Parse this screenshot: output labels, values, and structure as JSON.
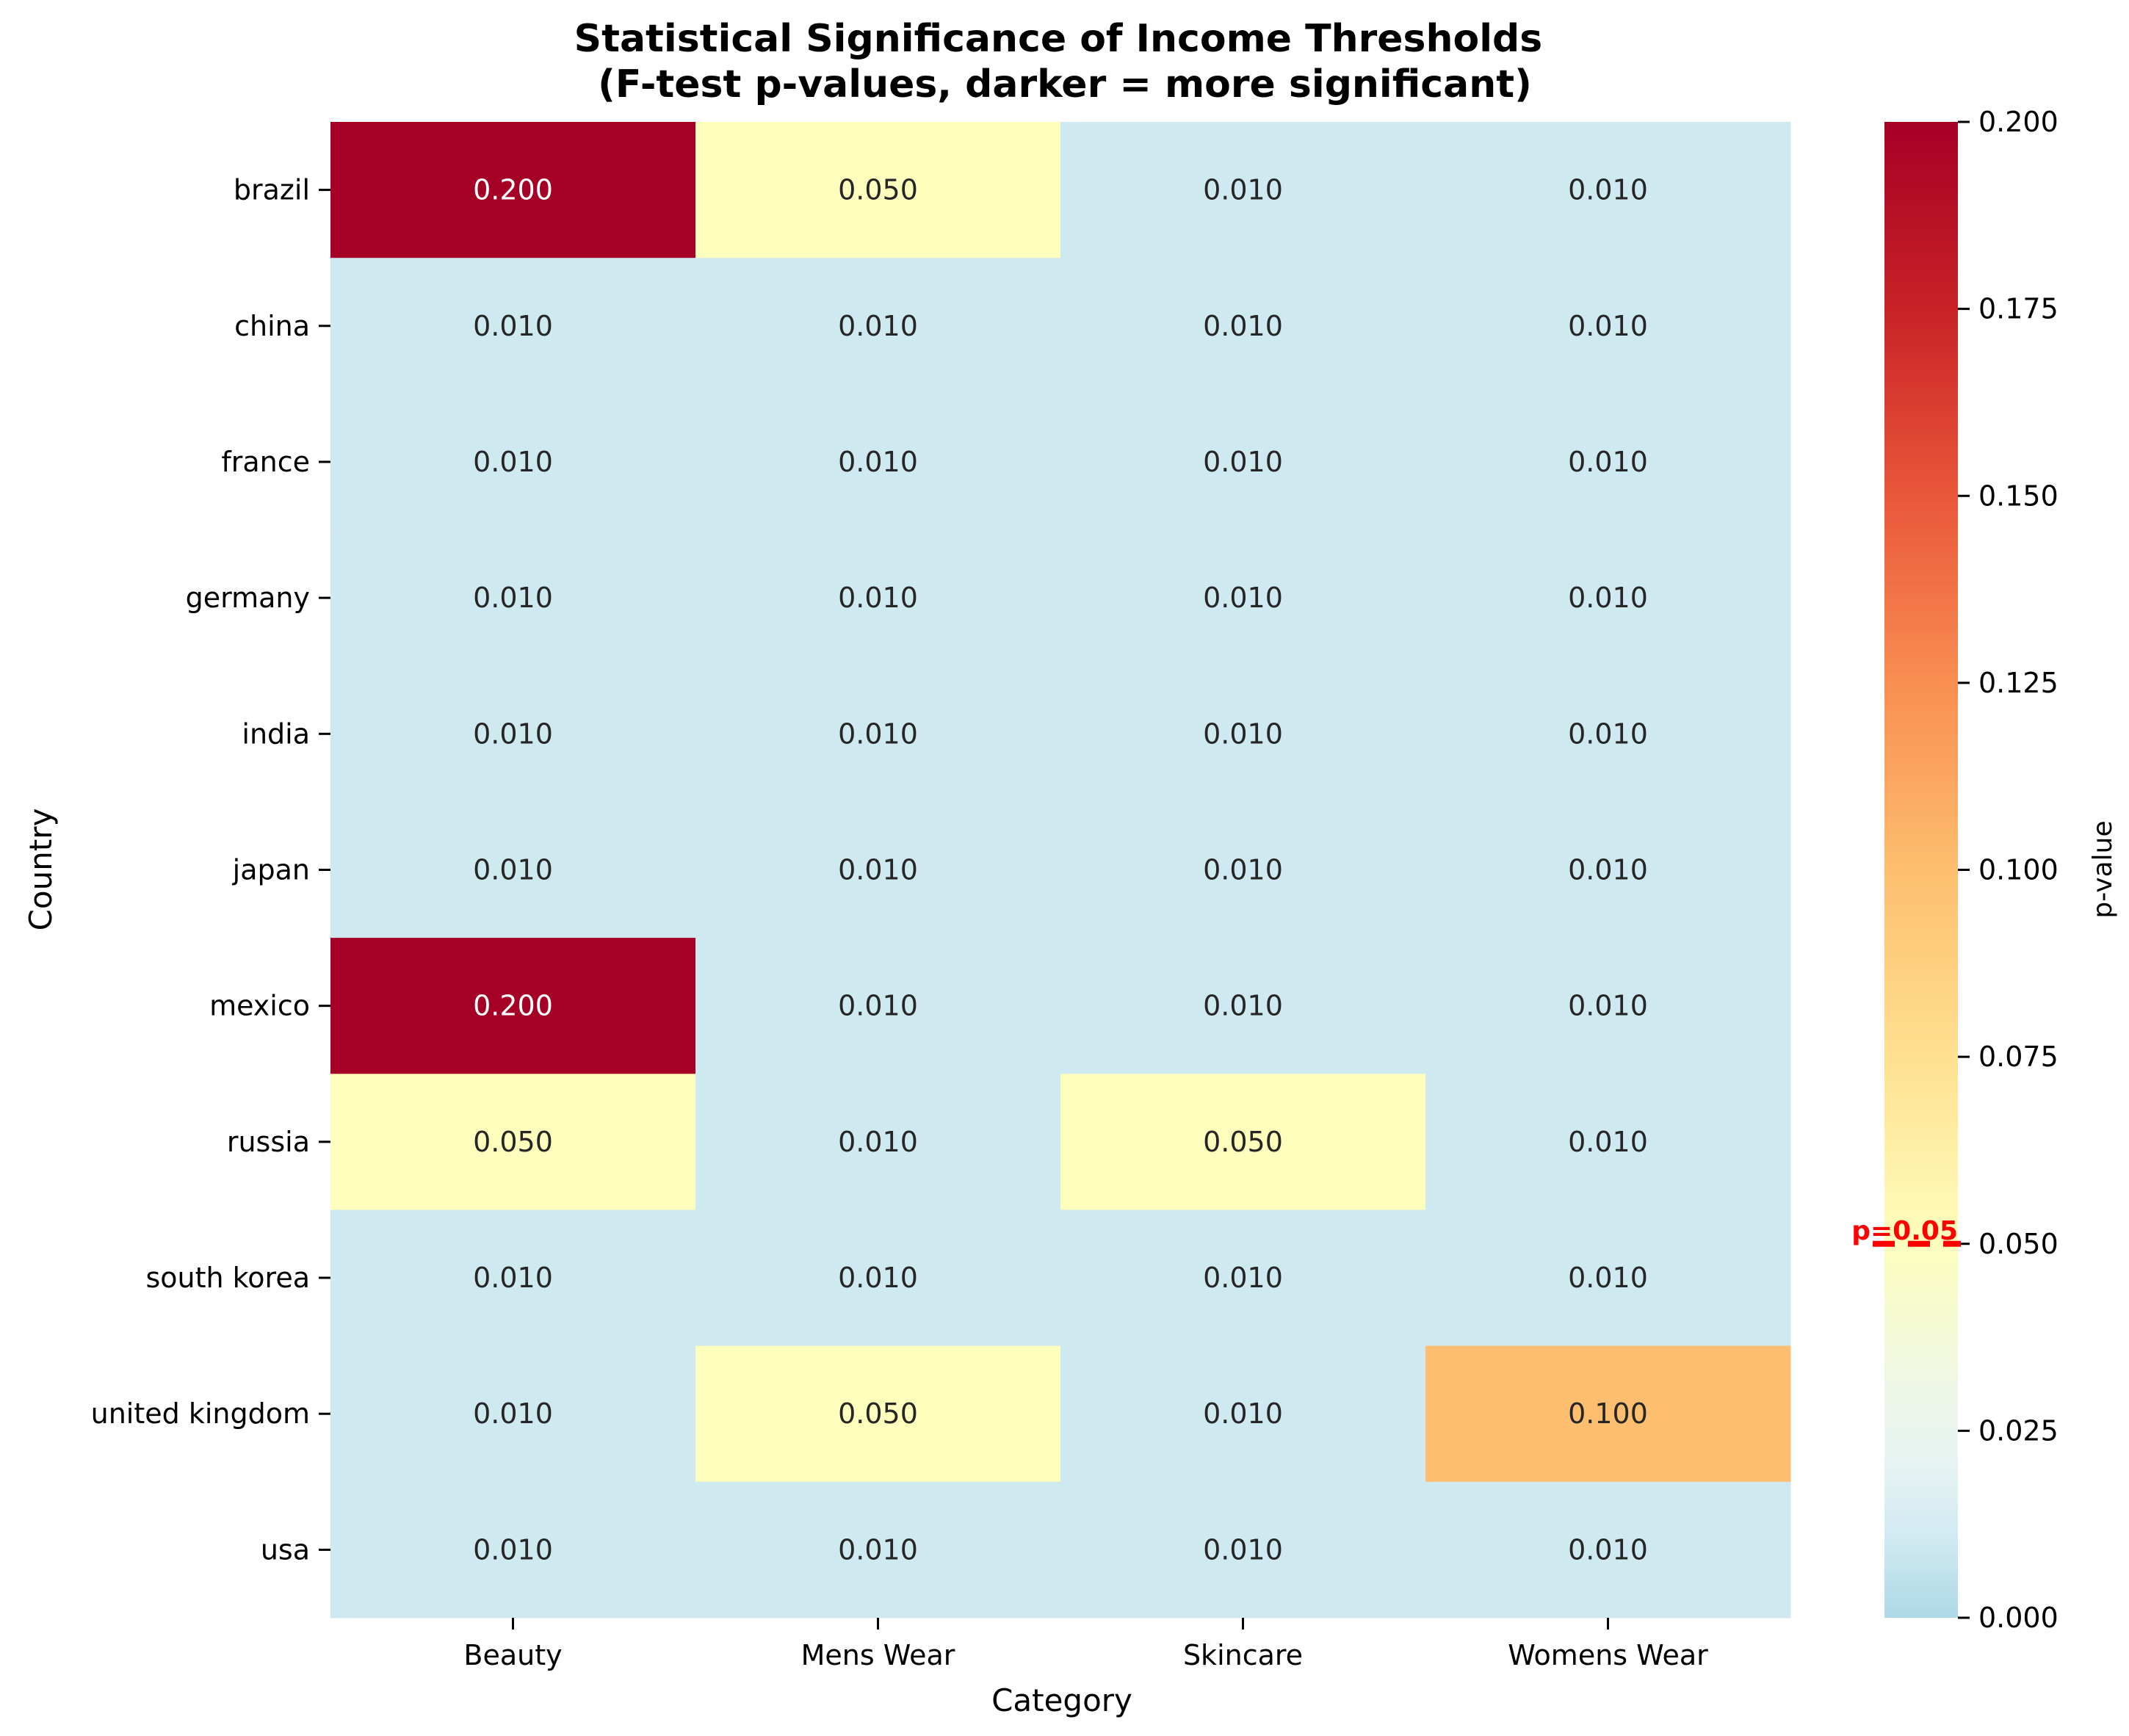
{
  "chart_data": {
    "type": "heatmap",
    "title": "Statistical Significance of Income Thresholds\n(F-test p-values, darker = more significant)",
    "xlabel": "Category",
    "ylabel": "Country",
    "categories": [
      "Beauty",
      "Mens Wear",
      "Skincare",
      "Womens Wear"
    ],
    "countries": [
      "brazil",
      "china",
      "france",
      "germany",
      "india",
      "japan",
      "mexico",
      "russia",
      "south korea",
      "united kingdom",
      "usa"
    ],
    "values": [
      [
        0.2,
        0.05,
        0.01,
        0.01
      ],
      [
        0.01,
        0.01,
        0.01,
        0.01
      ],
      [
        0.01,
        0.01,
        0.01,
        0.01
      ],
      [
        0.01,
        0.01,
        0.01,
        0.01
      ],
      [
        0.01,
        0.01,
        0.01,
        0.01
      ],
      [
        0.01,
        0.01,
        0.01,
        0.01
      ],
      [
        0.2,
        0.01,
        0.01,
        0.01
      ],
      [
        0.05,
        0.01,
        0.05,
        0.01
      ],
      [
        0.01,
        0.01,
        0.01,
        0.01
      ],
      [
        0.01,
        0.05,
        0.01,
        0.1
      ],
      [
        0.01,
        0.01,
        0.01,
        0.01
      ]
    ],
    "value_format_decimals": 3,
    "colorbar": {
      "label": "p-value",
      "range": [
        0,
        0.2
      ],
      "ticks": [
        "0.000",
        "0.025",
        "0.050",
        "0.075",
        "0.100",
        "0.125",
        "0.150",
        "0.175",
        "0.200"
      ],
      "colormap": "RdYlBu_r (light blue to dark red)",
      "stops": [
        {
          "v": 0.0,
          "color": "#add8e6"
        },
        {
          "v": 0.01,
          "color": "#cfe9f1"
        },
        {
          "v": 0.02,
          "color": "#e6f3f3"
        },
        {
          "v": 0.03,
          "color": "#eef6e8"
        },
        {
          "v": 0.04,
          "color": "#f5fad2"
        },
        {
          "v": 0.05,
          "color": "#fefebd"
        },
        {
          "v": 0.075,
          "color": "#fee090"
        },
        {
          "v": 0.1,
          "color": "#fdbe6f"
        },
        {
          "v": 0.125,
          "color": "#f98e52"
        },
        {
          "v": 0.15,
          "color": "#e9573a"
        },
        {
          "v": 0.175,
          "color": "#c82227"
        },
        {
          "v": 0.2,
          "color": "#a50026"
        }
      ]
    },
    "threshold": {
      "value": 0.05,
      "label": "p=0.05",
      "color": "#ff0000"
    },
    "dark_text_threshold": 0.15
  }
}
